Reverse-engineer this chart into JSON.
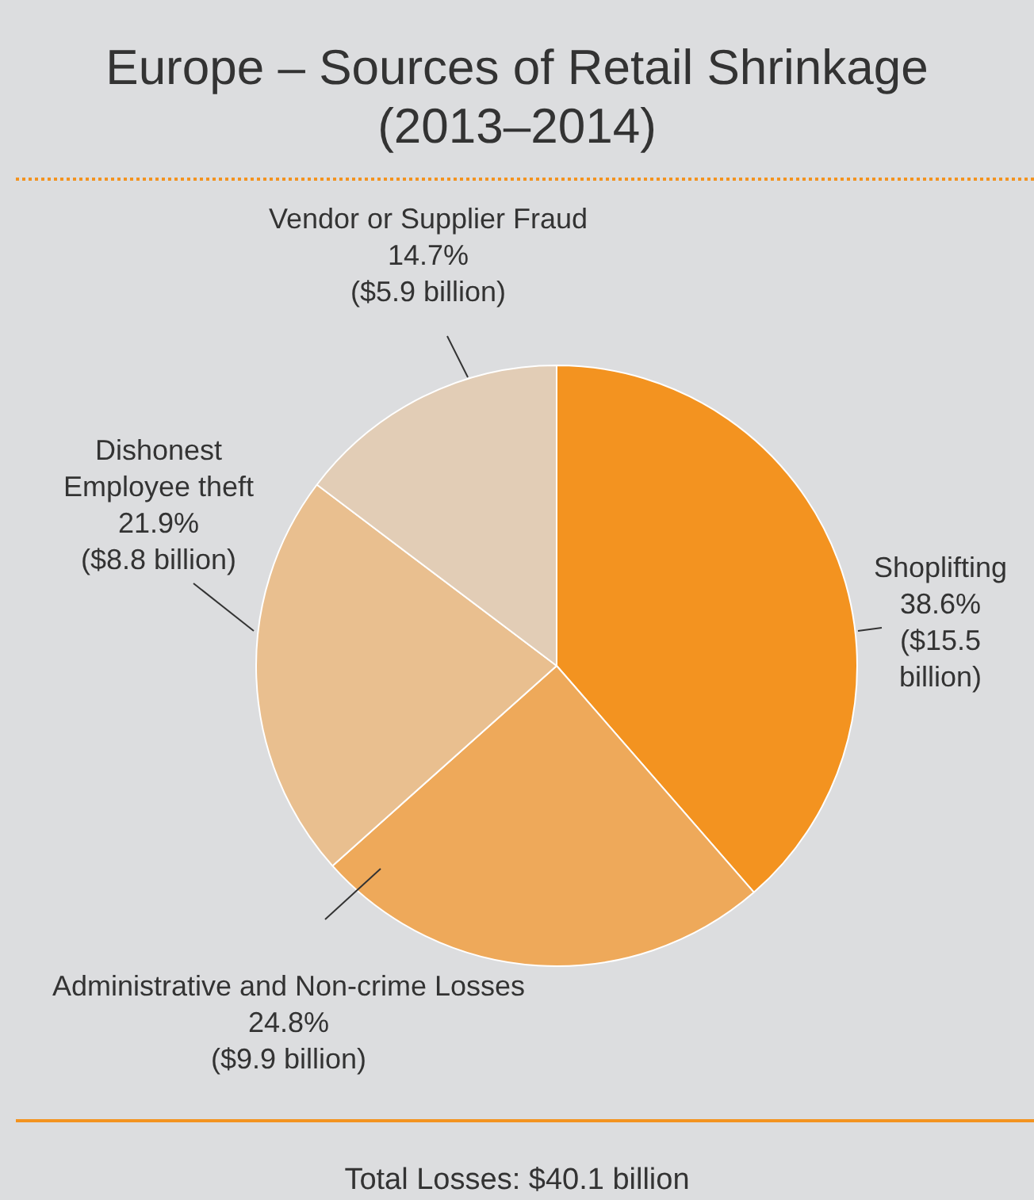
{
  "chart_data": {
    "type": "pie",
    "title": "Europe – Sources of Retail Shrinkage (2013–2014)",
    "categories": [
      "Shoplifting",
      "Administrative and Non-crime Losses",
      "Dishonest Employee theft",
      "Vendor or Supplier Fraud"
    ],
    "values": [
      38.6,
      24.8,
      21.9,
      14.7
    ],
    "value_labels": [
      "38.6% ($15.5 billion)",
      "24.8% ($9.9 billion)",
      "21.9% ($8.8 billion)",
      "14.7% ($5.9 billion)"
    ],
    "colors": [
      "#f39320",
      "#eea95a",
      "#e9bf8f",
      "#e2cdb6"
    ],
    "annotations": [
      "Total Losses: $40.1 billion"
    ],
    "legend": false
  }
}
